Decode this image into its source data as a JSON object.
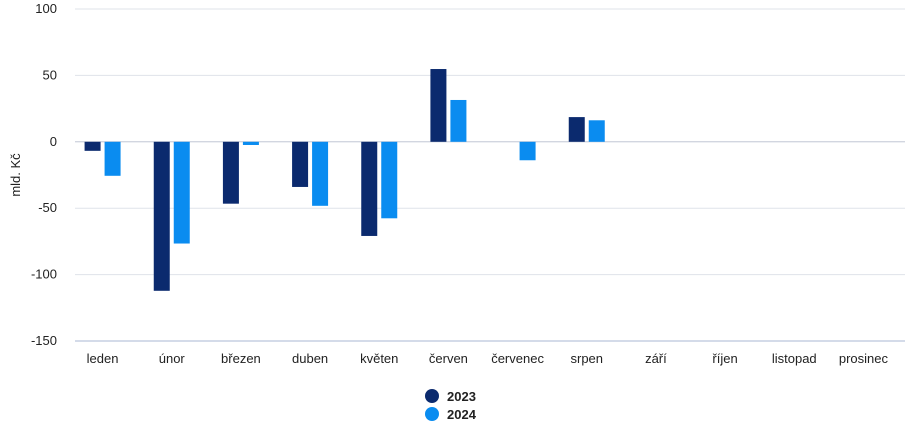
{
  "chart_data": {
    "type": "bar",
    "title": "",
    "xlabel": "",
    "ylabel": "mld. Kč",
    "ylim": [
      -150,
      100
    ],
    "yticks": [
      100,
      50,
      0,
      -50,
      -100,
      -150
    ],
    "grid": true,
    "legend_position": "bottom-center",
    "categories": [
      "leden",
      "únor",
      "březen",
      "duben",
      "květen",
      "červen",
      "červenec",
      "srpen",
      "září",
      "říjen",
      "listopad",
      "prosinec"
    ],
    "series": [
      {
        "name": "2023",
        "color": "#0b2a6e",
        "values": [
          -6.8,
          -112.2,
          -46.6,
          -34.0,
          -70.9,
          54.8,
          null,
          18.6,
          null,
          null,
          null,
          null
        ]
      },
      {
        "name": "2024",
        "color": "#0a8cf0",
        "values": [
          -25.6,
          -76.6,
          -2.4,
          -48.2,
          -57.6,
          31.5,
          -13.9,
          16.2,
          null,
          null,
          null,
          null
        ]
      }
    ]
  }
}
